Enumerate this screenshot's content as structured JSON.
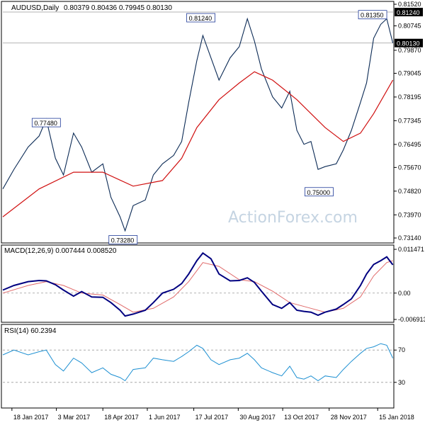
{
  "colors": {
    "price": "#0b2a55",
    "ma": "#d01010",
    "macd": "#000080",
    "signal": "#e06a6a",
    "rsi": "#1e90d2",
    "grid": "#9a9a9a",
    "badge_border": "#1f3a99"
  },
  "watermark": "ActionForex.com",
  "chart_data": [
    {
      "type": "line",
      "title": "AUDUSD,Daily",
      "header_values": "0.80379 0.80436 0.79945 0.80130",
      "x": [
        "18 Jan 2017",
        "3 Mar 2017",
        "18 Apr 2017",
        "1 Jun 2017",
        "17 Jul 2017",
        "30 Aug 2017",
        "13 Oct 2017",
        "28 Nov 2017",
        "15 Jan 2018"
      ],
      "ylim": [
        0.7314,
        0.8152
      ],
      "y_ticks": [
        "0.81520",
        "0.80745",
        "0.79870",
        "0.79045",
        "0.78195",
        "0.77345",
        "0.76495",
        "0.75670",
        "0.74820",
        "0.73970",
        "0.73140"
      ],
      "current_price": {
        "value": 0.8013,
        "label": "0.80130"
      },
      "level_line": {
        "value": 0.8124,
        "label": "0.81240"
      },
      "annotations": [
        {
          "label": "0.81240",
          "x": "24 Jul 2017",
          "y": 0.8124
        },
        {
          "label": "0.81350",
          "x": "10 Jan 2018",
          "y": 0.8135
        },
        {
          "label": "0.77480",
          "x": "21 Feb 2017",
          "y": 0.7748
        },
        {
          "label": "0.75000",
          "x": "18 Nov 2017",
          "y": 0.75
        },
        {
          "label": "0.73280",
          "x": "8 May 2017",
          "y": 0.7328
        }
      ],
      "series": [
        {
          "values": [
            {
              "x": "2017-01-09",
              "y": 0.749
            },
            {
              "x": "2017-01-20",
              "y": 0.756
            },
            {
              "x": "2017-02-03",
              "y": 0.764
            },
            {
              "x": "2017-02-14",
              "y": 0.768
            },
            {
              "x": "2017-02-21",
              "y": 0.774
            },
            {
              "x": "2017-03-02",
              "y": 0.76
            },
            {
              "x": "2017-03-10",
              "y": 0.754
            },
            {
              "x": "2017-03-20",
              "y": 0.769
            },
            {
              "x": "2017-03-28",
              "y": 0.764
            },
            {
              "x": "2017-04-07",
              "y": 0.755
            },
            {
              "x": "2017-04-18",
              "y": 0.758
            },
            {
              "x": "2017-04-26",
              "y": 0.746
            },
            {
              "x": "2017-05-05",
              "y": 0.739
            },
            {
              "x": "2017-05-10",
              "y": 0.734
            },
            {
              "x": "2017-05-18",
              "y": 0.743
            },
            {
              "x": "2017-05-30",
              "y": 0.745
            },
            {
              "x": "2017-06-07",
              "y": 0.754
            },
            {
              "x": "2017-06-16",
              "y": 0.758
            },
            {
              "x": "2017-06-27",
              "y": 0.761
            },
            {
              "x": "2017-07-05",
              "y": 0.766
            },
            {
              "x": "2017-07-12",
              "y": 0.78
            },
            {
              "x": "2017-07-20",
              "y": 0.795
            },
            {
              "x": "2017-07-26",
              "y": 0.804
            },
            {
              "x": "2017-08-03",
              "y": 0.796
            },
            {
              "x": "2017-08-11",
              "y": 0.788
            },
            {
              "x": "2017-08-22",
              "y": 0.796
            },
            {
              "x": "2017-08-31",
              "y": 0.8
            },
            {
              "x": "2017-09-08",
              "y": 0.81
            },
            {
              "x": "2017-09-15",
              "y": 0.802
            },
            {
              "x": "2017-09-22",
              "y": 0.792
            },
            {
              "x": "2017-10-03",
              "y": 0.782
            },
            {
              "x": "2017-10-12",
              "y": 0.778
            },
            {
              "x": "2017-10-20",
              "y": 0.784
            },
            {
              "x": "2017-10-27",
              "y": 0.77
            },
            {
              "x": "2017-11-03",
              "y": 0.765
            },
            {
              "x": "2017-11-10",
              "y": 0.766
            },
            {
              "x": "2017-11-17",
              "y": 0.756
            },
            {
              "x": "2017-11-24",
              "y": 0.757
            },
            {
              "x": "2017-12-05",
              "y": 0.758
            },
            {
              "x": "2017-12-12",
              "y": 0.763
            },
            {
              "x": "2017-12-20",
              "y": 0.77
            },
            {
              "x": "2017-12-29",
              "y": 0.78
            },
            {
              "x": "2018-01-04",
              "y": 0.787
            },
            {
              "x": "2018-01-11",
              "y": 0.803
            },
            {
              "x": "2018-01-18",
              "y": 0.808
            },
            {
              "x": "2018-01-24",
              "y": 0.81
            },
            {
              "x": "2018-01-30",
              "y": 0.8013
            }
          ]
        },
        {
          "values": [
            {
              "x": "2017-01-09",
              "y": 0.739
            },
            {
              "x": "2017-02-14",
              "y": 0.749
            },
            {
              "x": "2017-03-20",
              "y": 0.755
            },
            {
              "x": "2017-04-18",
              "y": 0.755
            },
            {
              "x": "2017-05-18",
              "y": 0.75
            },
            {
              "x": "2017-06-16",
              "y": 0.752
            },
            {
              "x": "2017-07-05",
              "y": 0.76
            },
            {
              "x": "2017-07-20",
              "y": 0.771
            },
            {
              "x": "2017-08-11",
              "y": 0.781
            },
            {
              "x": "2017-08-31",
              "y": 0.787
            },
            {
              "x": "2017-09-15",
              "y": 0.791
            },
            {
              "x": "2017-10-03",
              "y": 0.788
            },
            {
              "x": "2017-10-27",
              "y": 0.781
            },
            {
              "x": "2017-11-24",
              "y": 0.771
            },
            {
              "x": "2017-12-12",
              "y": 0.766
            },
            {
              "x": "2017-12-29",
              "y": 0.769
            },
            {
              "x": "2018-01-11",
              "y": 0.776
            },
            {
              "x": "2018-01-30",
              "y": 0.788
            }
          ]
        }
      ]
    },
    {
      "type": "line",
      "title": "MACD(12,26,9) 0.007444 0.008520",
      "ylim": [
        -0.006913,
        0.011471
      ],
      "y_ticks": [
        "0.011471",
        "0.00",
        "-0.006913"
      ],
      "series": [
        {
          "values": [
            {
              "x": "2017-01-09",
              "y": 0.0008
            },
            {
              "x": "2017-01-20",
              "y": 0.002
            },
            {
              "x": "2017-02-03",
              "y": 0.003
            },
            {
              "x": "2017-02-14",
              "y": 0.0033
            },
            {
              "x": "2017-02-21",
              "y": 0.0032
            },
            {
              "x": "2017-03-02",
              "y": 0.0022
            },
            {
              "x": "2017-03-10",
              "y": 0.0008
            },
            {
              "x": "2017-03-20",
              "y": -0.0008
            },
            {
              "x": "2017-03-28",
              "y": 0.0004
            },
            {
              "x": "2017-04-07",
              "y": -0.001
            },
            {
              "x": "2017-04-18",
              "y": -0.0011
            },
            {
              "x": "2017-04-26",
              "y": -0.0025
            },
            {
              "x": "2017-05-05",
              "y": -0.0045
            },
            {
              "x": "2017-05-10",
              "y": -0.006
            },
            {
              "x": "2017-05-18",
              "y": -0.0055
            },
            {
              "x": "2017-05-30",
              "y": -0.0045
            },
            {
              "x": "2017-06-07",
              "y": -0.0025
            },
            {
              "x": "2017-06-16",
              "y": 0.0
            },
            {
              "x": "2017-06-27",
              "y": 0.001
            },
            {
              "x": "2017-07-05",
              "y": 0.0025
            },
            {
              "x": "2017-07-12",
              "y": 0.005
            },
            {
              "x": "2017-07-20",
              "y": 0.0085
            },
            {
              "x": "2017-07-26",
              "y": 0.0105
            },
            {
              "x": "2017-08-03",
              "y": 0.009
            },
            {
              "x": "2017-08-11",
              "y": 0.005
            },
            {
              "x": "2017-08-22",
              "y": 0.0032
            },
            {
              "x": "2017-08-31",
              "y": 0.0033
            },
            {
              "x": "2017-09-08",
              "y": 0.004
            },
            {
              "x": "2017-09-15",
              "y": 0.0028
            },
            {
              "x": "2017-09-22",
              "y": 0.0005
            },
            {
              "x": "2017-10-03",
              "y": -0.003
            },
            {
              "x": "2017-10-12",
              "y": -0.004
            },
            {
              "x": "2017-10-20",
              "y": -0.0025
            },
            {
              "x": "2017-10-27",
              "y": -0.0045
            },
            {
              "x": "2017-11-03",
              "y": -0.0048
            },
            {
              "x": "2017-11-10",
              "y": -0.005
            },
            {
              "x": "2017-11-17",
              "y": -0.0058
            },
            {
              "x": "2017-11-24",
              "y": -0.005
            },
            {
              "x": "2017-12-05",
              "y": -0.0042
            },
            {
              "x": "2017-12-12",
              "y": -0.003
            },
            {
              "x": "2017-12-20",
              "y": -0.0015
            },
            {
              "x": "2017-12-29",
              "y": 0.002
            },
            {
              "x": "2018-01-04",
              "y": 0.005
            },
            {
              "x": "2018-01-11",
              "y": 0.0075
            },
            {
              "x": "2018-01-18",
              "y": 0.0085
            },
            {
              "x": "2018-01-24",
              "y": 0.0095
            },
            {
              "x": "2018-01-30",
              "y": 0.0074
            }
          ]
        },
        {
          "values": [
            {
              "x": "2017-01-09",
              "y": 0.0
            },
            {
              "x": "2017-02-03",
              "y": 0.002
            },
            {
              "x": "2017-02-21",
              "y": 0.003
            },
            {
              "x": "2017-03-10",
              "y": 0.002
            },
            {
              "x": "2017-03-28",
              "y": 0.0
            },
            {
              "x": "2017-04-18",
              "y": -0.0005
            },
            {
              "x": "2017-05-05",
              "y": -0.003
            },
            {
              "x": "2017-05-18",
              "y": -0.005
            },
            {
              "x": "2017-06-07",
              "y": -0.004
            },
            {
              "x": "2017-06-27",
              "y": -0.001
            },
            {
              "x": "2017-07-12",
              "y": 0.003
            },
            {
              "x": "2017-07-26",
              "y": 0.008
            },
            {
              "x": "2017-08-11",
              "y": 0.007
            },
            {
              "x": "2017-08-31",
              "y": 0.0035
            },
            {
              "x": "2017-09-15",
              "y": 0.003
            },
            {
              "x": "2017-10-03",
              "y": 0.0005
            },
            {
              "x": "2017-10-20",
              "y": -0.0025
            },
            {
              "x": "2017-11-10",
              "y": -0.004
            },
            {
              "x": "2017-11-24",
              "y": -0.005
            },
            {
              "x": "2017-12-12",
              "y": -0.004
            },
            {
              "x": "2017-12-29",
              "y": -0.001
            },
            {
              "x": "2018-01-11",
              "y": 0.0045
            },
            {
              "x": "2018-01-24",
              "y": 0.008
            },
            {
              "x": "2018-01-30",
              "y": 0.0085
            }
          ]
        }
      ]
    },
    {
      "type": "line",
      "title": "RSI(14) 60.2394",
      "ylim": [
        0,
        100
      ],
      "y_ticks": [
        "70",
        "30"
      ],
      "series": [
        {
          "values": [
            {
              "x": "2017-01-09",
              "y": 64
            },
            {
              "x": "2017-01-20",
              "y": 70
            },
            {
              "x": "2017-02-03",
              "y": 64
            },
            {
              "x": "2017-02-14",
              "y": 68
            },
            {
              "x": "2017-02-21",
              "y": 70
            },
            {
              "x": "2017-03-02",
              "y": 52
            },
            {
              "x": "2017-03-10",
              "y": 44
            },
            {
              "x": "2017-03-20",
              "y": 60
            },
            {
              "x": "2017-03-28",
              "y": 54
            },
            {
              "x": "2017-04-07",
              "y": 42
            },
            {
              "x": "2017-04-18",
              "y": 48
            },
            {
              "x": "2017-04-26",
              "y": 40
            },
            {
              "x": "2017-05-05",
              "y": 36
            },
            {
              "x": "2017-05-10",
              "y": 32
            },
            {
              "x": "2017-05-18",
              "y": 46
            },
            {
              "x": "2017-05-30",
              "y": 48
            },
            {
              "x": "2017-06-07",
              "y": 60
            },
            {
              "x": "2017-06-16",
              "y": 58
            },
            {
              "x": "2017-06-27",
              "y": 56
            },
            {
              "x": "2017-07-05",
              "y": 62
            },
            {
              "x": "2017-07-12",
              "y": 68
            },
            {
              "x": "2017-07-20",
              "y": 76
            },
            {
              "x": "2017-07-26",
              "y": 72
            },
            {
              "x": "2017-08-03",
              "y": 58
            },
            {
              "x": "2017-08-11",
              "y": 52
            },
            {
              "x": "2017-08-22",
              "y": 58
            },
            {
              "x": "2017-08-31",
              "y": 60
            },
            {
              "x": "2017-09-08",
              "y": 66
            },
            {
              "x": "2017-09-15",
              "y": 58
            },
            {
              "x": "2017-09-22",
              "y": 48
            },
            {
              "x": "2017-10-03",
              "y": 42
            },
            {
              "x": "2017-10-12",
              "y": 38
            },
            {
              "x": "2017-10-20",
              "y": 50
            },
            {
              "x": "2017-10-27",
              "y": 36
            },
            {
              "x": "2017-11-03",
              "y": 34
            },
            {
              "x": "2017-11-10",
              "y": 38
            },
            {
              "x": "2017-11-17",
              "y": 32
            },
            {
              "x": "2017-11-24",
              "y": 38
            },
            {
              "x": "2017-12-05",
              "y": 36
            },
            {
              "x": "2017-12-12",
              "y": 46
            },
            {
              "x": "2017-12-20",
              "y": 56
            },
            {
              "x": "2017-12-29",
              "y": 66
            },
            {
              "x": "2018-01-04",
              "y": 72
            },
            {
              "x": "2018-01-11",
              "y": 74
            },
            {
              "x": "2018-01-18",
              "y": 78
            },
            {
              "x": "2018-01-24",
              "y": 76
            },
            {
              "x": "2018-01-30",
              "y": 60
            }
          ]
        }
      ]
    }
  ]
}
